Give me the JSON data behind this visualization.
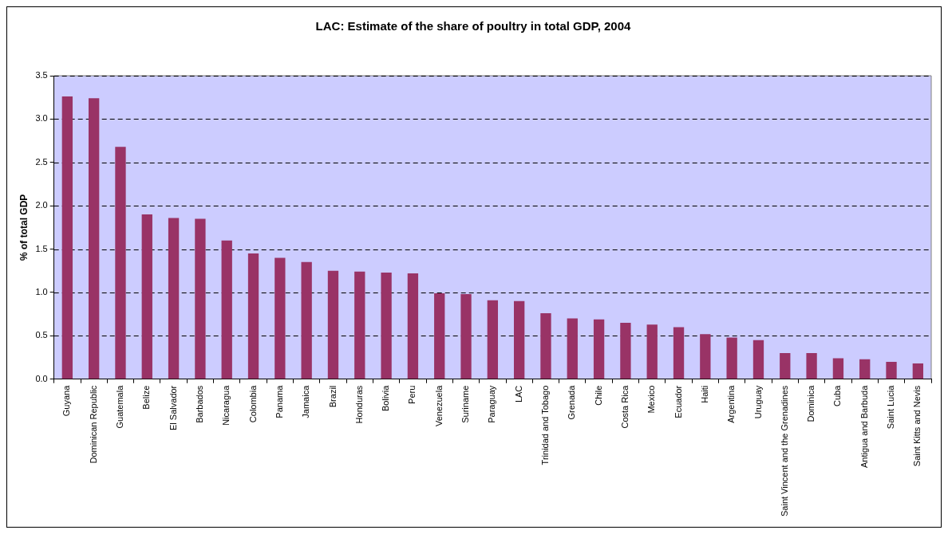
{
  "chart_data": {
    "type": "bar",
    "title": "LAC: Estimate of the share of poultry in total GDP, 2004",
    "ylabel": "% of total GDP",
    "categories": [
      "Guyana",
      "Dominican Republic",
      "Guatemala",
      "Belize",
      "El Salvador",
      "Barbados",
      "Nicaragua",
      "Colombia",
      "Panama",
      "Jamaica",
      "Brazil",
      "Honduras",
      "Bolivia",
      "Peru",
      "Venezuela",
      "Suriname",
      "Paraguay",
      "LAC",
      "Trinidad and Tobago",
      "Grenada",
      "Chile",
      "Costa Rica",
      "Mexico",
      "Ecuador",
      "Haiti",
      "Argentina",
      "Uruguay",
      "Saint Vincent and the Grenadines",
      "Dominica",
      "Cuba",
      "Antigua and Barbuda",
      "Saint Lucia",
      "Saint Kitts and Nevis"
    ],
    "values": [
      3.26,
      3.24,
      2.68,
      1.9,
      1.86,
      1.85,
      1.6,
      1.45,
      1.4,
      1.35,
      1.25,
      1.24,
      1.23,
      1.22,
      0.99,
      0.98,
      0.91,
      0.9,
      0.76,
      0.7,
      0.69,
      0.65,
      0.63,
      0.6,
      0.52,
      0.48,
      0.45,
      0.3,
      0.3,
      0.24,
      0.23,
      0.2,
      0.18
    ],
    "color": "#993366",
    "ylim": [
      0,
      3.5
    ],
    "yticks": [
      {
        "value": 0,
        "label": "0.0"
      },
      {
        "value": 0.5,
        "label": "0.5"
      },
      {
        "value": 1,
        "label": "1.0"
      },
      {
        "value": 1.5,
        "label": "1.5"
      },
      {
        "value": 2,
        "label": "2.0"
      },
      {
        "value": 2.5,
        "label": "2.5"
      },
      {
        "value": 3,
        "label": "3.0"
      },
      {
        "value": 3.5,
        "label": "3.5"
      }
    ],
    "grid": "y",
    "line_style": "dashed",
    "legend": false
  }
}
